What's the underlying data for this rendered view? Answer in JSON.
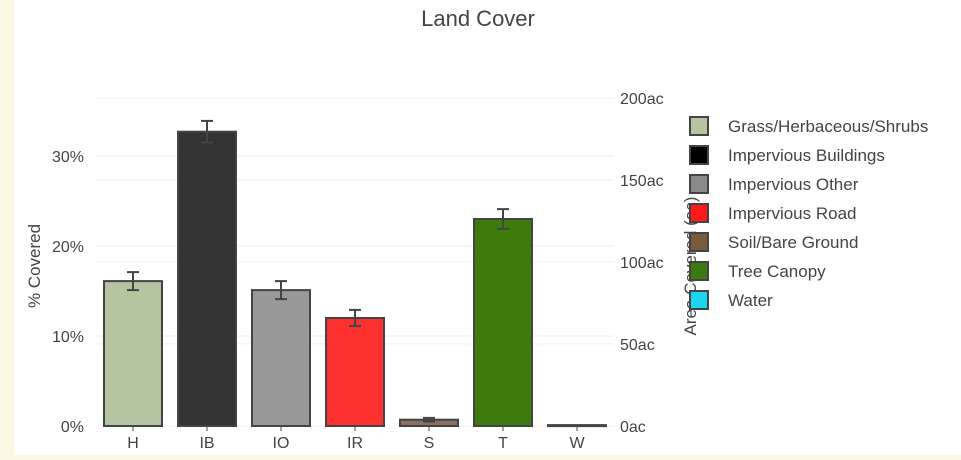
{
  "chart_data": {
    "type": "bar",
    "title": "Land Cover",
    "xlabel": "",
    "ylabel": "% Covered",
    "y2label": "Area Covered (ac)",
    "categories": [
      "H",
      "IB",
      "IO",
      "IR",
      "S",
      "T",
      "W"
    ],
    "values": [
      16.1,
      32.7,
      15.1,
      12.0,
      0.7,
      23.0,
      0.1
    ],
    "error_bars": [
      1.0,
      1.2,
      1.0,
      0.9,
      0.2,
      1.1,
      0.0
    ],
    "ylim": [
      0,
      35
    ],
    "y_ticks": [
      "0%",
      "10%",
      "20%",
      "30%"
    ],
    "y2lim": [
      0,
      200
    ],
    "y2_ticks": [
      "0ac",
      "50ac",
      "100ac",
      "150ac",
      "200ac"
    ],
    "grid": true,
    "legend_position": "right",
    "legend": [
      {
        "label": "Grass/Herbaceous/Shrubs",
        "color": "#b5c4a1"
      },
      {
        "label": "Impervious Buildings",
        "color": "#000000"
      },
      {
        "label": "Impervious Other",
        "color": "#8a8a8a"
      },
      {
        "label": "Impervious Road",
        "color": "#ff1a1a"
      },
      {
        "label": "Soil/Bare Ground",
        "color": "#7a5a3c"
      },
      {
        "label": "Tree Canopy",
        "color": "#3a7a10"
      },
      {
        "label": "Water",
        "color": "#1ad6f0"
      }
    ],
    "bar_colors": [
      "#b5c4a1",
      "#333333",
      "#999999",
      "#ff3030",
      "#8a7060",
      "#3e7a0c",
      "#1ad6f0"
    ]
  }
}
